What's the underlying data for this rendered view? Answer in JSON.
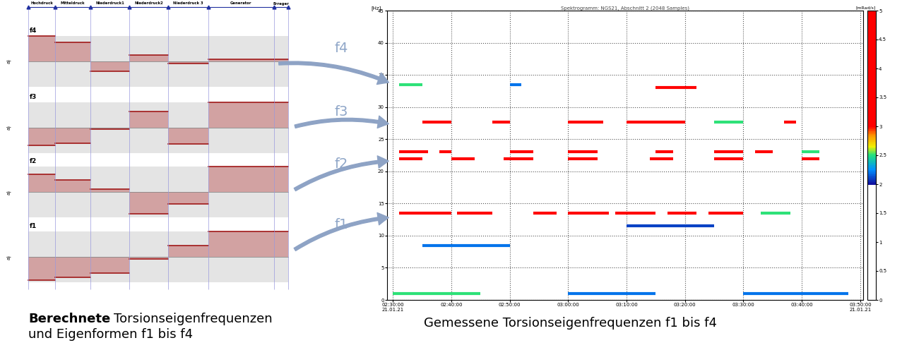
{
  "left_diagram": {
    "sections": [
      "Hochdruck",
      "Mitteldruck",
      "Niederdruck1",
      "Niederdruck2",
      "Niederdruck 3",
      "Generator",
      "Erreger"
    ],
    "axis_label": "a)",
    "modes": [
      {
        "name": "f4",
        "values": [
          1.0,
          0.75,
          -0.4,
          0.25,
          -0.08,
          0.08,
          0.08
        ]
      },
      {
        "name": "f3",
        "values": [
          -0.7,
          -0.6,
          -0.05,
          0.65,
          -0.65,
          1.0,
          1.0
        ]
      },
      {
        "name": "f2",
        "values": [
          0.7,
          0.47,
          0.1,
          -0.85,
          -0.47,
          1.0,
          1.0
        ]
      },
      {
        "name": "f1",
        "values": [
          -0.92,
          -0.8,
          -0.65,
          -0.08,
          0.45,
          1.0,
          1.0
        ]
      }
    ]
  },
  "arrows": [
    "f4",
    "f3",
    "f2",
    "f1"
  ],
  "chart_data": {
    "type": "spectrogram",
    "title": "Spektrogramm: NGS21, Abschnitt 2 (2048 Samples)",
    "y_label": "[Hz]",
    "xlim": [
      -1,
      80.5
    ],
    "xticks": [
      {
        "value": 0,
        "label": "02:30:00\n21.01.21"
      },
      {
        "value": 10,
        "label": "02:40:00"
      },
      {
        "value": 20,
        "label": "02:50:00"
      },
      {
        "value": 30,
        "label": "03:00:00"
      },
      {
        "value": 40,
        "label": "03:10:00"
      },
      {
        "value": 50,
        "label": "03:20:00"
      },
      {
        "value": 60,
        "label": "03:30:00"
      },
      {
        "value": 70,
        "label": "03:40:00"
      },
      {
        "value": 80,
        "label": "03:50:00\n21.01.21"
      }
    ],
    "ylim": [
      0,
      45
    ],
    "yticks": [
      0,
      5,
      10,
      15,
      20,
      25,
      30,
      35,
      40,
      45
    ],
    "grid": true,
    "colorbar": {
      "range": [
        0,
        5
      ],
      "ticks": [
        0,
        0.5,
        1,
        1.5,
        2,
        2.5,
        3,
        3.5,
        4,
        4.5,
        5
      ],
      "label": "[mRad/s]"
    },
    "bursts": [
      {
        "start": 1,
        "end": 10,
        "frequency": 13.5,
        "intensity": 4
      },
      {
        "start": 11,
        "end": 17,
        "frequency": 13.5,
        "intensity": 3.5
      },
      {
        "start": 24,
        "end": 28,
        "frequency": 13.5,
        "intensity": 4
      },
      {
        "start": 30,
        "end": 37,
        "frequency": 13.5,
        "intensity": 4
      },
      {
        "start": 38,
        "end": 45,
        "frequency": 13.5,
        "intensity": 3.5
      },
      {
        "start": 47,
        "end": 52,
        "frequency": 13.5,
        "intensity": 3
      },
      {
        "start": 54,
        "end": 60,
        "frequency": 13.5,
        "intensity": 3
      },
      {
        "start": 63,
        "end": 68,
        "frequency": 13.5,
        "intensity": 2.5
      },
      {
        "start": 1,
        "end": 6,
        "frequency": 23,
        "intensity": 3.5
      },
      {
        "start": 8,
        "end": 10,
        "frequency": 23,
        "intensity": 4
      },
      {
        "start": 20,
        "end": 24,
        "frequency": 23,
        "intensity": 4.5
      },
      {
        "start": 30,
        "end": 35,
        "frequency": 23,
        "intensity": 5
      },
      {
        "start": 45,
        "end": 48,
        "frequency": 23,
        "intensity": 4
      },
      {
        "start": 55,
        "end": 60,
        "frequency": 23,
        "intensity": 3.5
      },
      {
        "start": 62,
        "end": 65,
        "frequency": 23,
        "intensity": 3
      },
      {
        "start": 70,
        "end": 73,
        "frequency": 23,
        "intensity": 2.5
      },
      {
        "start": 1,
        "end": 5,
        "frequency": 22,
        "intensity": 4
      },
      {
        "start": 10,
        "end": 14,
        "frequency": 22,
        "intensity": 4
      },
      {
        "start": 19,
        "end": 24,
        "frequency": 22,
        "intensity": 5
      },
      {
        "start": 30,
        "end": 35,
        "frequency": 22,
        "intensity": 5
      },
      {
        "start": 44,
        "end": 48,
        "frequency": 22,
        "intensity": 4.5
      },
      {
        "start": 55,
        "end": 60,
        "frequency": 22,
        "intensity": 4
      },
      {
        "start": 70,
        "end": 73,
        "frequency": 22,
        "intensity": 3
      },
      {
        "start": 5,
        "end": 10,
        "frequency": 27.7,
        "intensity": 3
      },
      {
        "start": 17,
        "end": 20,
        "frequency": 27.7,
        "intensity": 5
      },
      {
        "start": 30,
        "end": 36,
        "frequency": 27.7,
        "intensity": 3
      },
      {
        "start": 40,
        "end": 50,
        "frequency": 27.7,
        "intensity": 3
      },
      {
        "start": 55,
        "end": 60,
        "frequency": 27.7,
        "intensity": 2.5
      },
      {
        "start": 67,
        "end": 69,
        "frequency": 27.7,
        "intensity": 4
      },
      {
        "start": 1,
        "end": 5,
        "frequency": 33.5,
        "intensity": 2.5
      },
      {
        "start": 20,
        "end": 22,
        "frequency": 33.5,
        "intensity": 2.2
      },
      {
        "start": 45,
        "end": 52,
        "frequency": 33,
        "intensity": 5
      },
      {
        "start": 0,
        "end": 15,
        "frequency": 1,
        "intensity": 2.5
      },
      {
        "start": 30,
        "end": 45,
        "frequency": 1,
        "intensity": 2.2
      },
      {
        "start": 60,
        "end": 78,
        "frequency": 1,
        "intensity": 2.2
      },
      {
        "start": 5,
        "end": 20,
        "frequency": 8.5,
        "intensity": 2.2
      },
      {
        "start": 40,
        "end": 55,
        "frequency": 11.5,
        "intensity": 2.1
      }
    ]
  },
  "captions": {
    "left": {
      "bold": "Berechnete",
      "line1": "Torsionseigenfrequenzen",
      "line2": "und Eigenformen f1 bis f4"
    },
    "right": "Gemessene Torsionseigenfrequenzen f1 bis f4"
  }
}
